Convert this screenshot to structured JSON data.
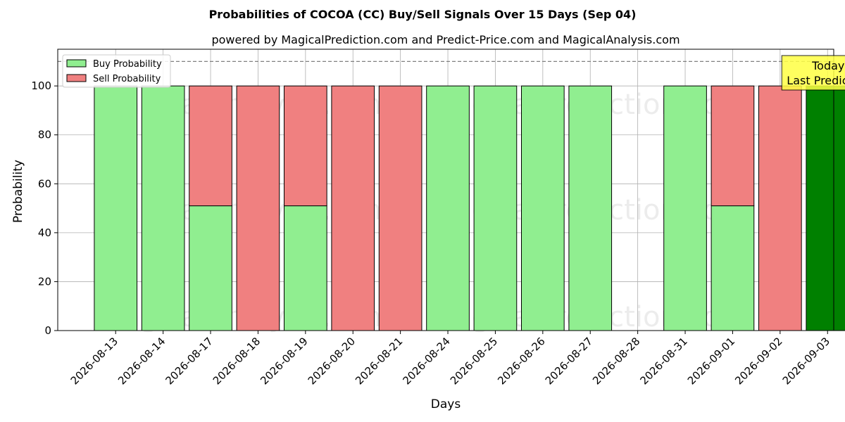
{
  "chart_data": {
    "type": "bar",
    "title": "Probabilities of COCOA (CC) Buy/Sell Signals Over 15 Days (Sep 04)",
    "subtitle": "powered by MagicalPrediction.com and Predict-Price.com and MagicalAnalysis.com",
    "xlabel": "Days",
    "ylabel": "Probability",
    "ylim": [
      0,
      115
    ],
    "yticks": [
      0,
      20,
      40,
      60,
      80,
      100
    ],
    "reference_line": 110,
    "grid": true,
    "legend_position": "top-left",
    "categories": [
      "2026-08-13",
      "2026-08-14",
      "2026-08-17",
      "2026-08-18",
      "2026-08-19",
      "2026-08-20",
      "2026-08-21",
      "2026-08-24",
      "2026-08-25",
      "2026-08-26",
      "2026-08-27",
      "2026-08-28",
      "2026-08-31",
      "2026-09-01",
      "2026-09-02",
      "2026-09-03"
    ],
    "series": [
      {
        "name": "Buy Probability",
        "color": "#90ee90",
        "values": [
          100,
          100,
          51,
          0,
          51,
          0,
          0,
          100,
          100,
          100,
          100,
          0,
          100,
          51,
          0,
          100
        ]
      },
      {
        "name": "Sell Probability",
        "color": "#f08080",
        "values": [
          0,
          0,
          49,
          100,
          49,
          100,
          100,
          0,
          0,
          0,
          0,
          0,
          0,
          49,
          100,
          0
        ]
      }
    ],
    "highlight": {
      "category": "2026-09-03",
      "color": "#008000"
    },
    "annotation": {
      "lines": [
        "Today",
        "Last Prediction"
      ],
      "background": "#ffff44"
    },
    "watermarks": [
      "MagicalAnalysis.com",
      "MagicalPrediction.com"
    ]
  }
}
